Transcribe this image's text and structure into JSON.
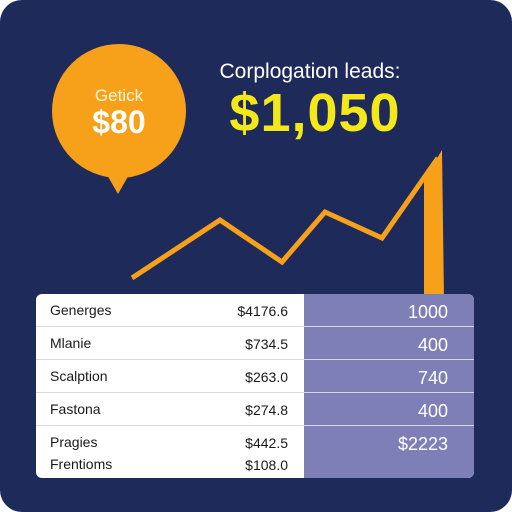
{
  "bubble": {
    "label": "Getick",
    "value": "$80"
  },
  "headline": "Corplogation leads:",
  "big_value": "$1,050",
  "table": {
    "rows": [
      {
        "name": "Generges",
        "amount": "$4176.6",
        "value": "1000"
      },
      {
        "name": "Mlanie",
        "amount": "$734.5",
        "value": "400"
      },
      {
        "name": "Scalption",
        "amount": "$263.0",
        "value": "740"
      },
      {
        "name": "Fastona",
        "amount": "$274.8",
        "value": "400"
      },
      {
        "name": "Pragies",
        "amount": "$442.5",
        "value": "$2223"
      },
      {
        "name": "Frentioms",
        "amount": "$108.0",
        "value": ""
      }
    ]
  },
  "colors": {
    "background": "#1e2a5a",
    "accent_orange": "#f7a11a",
    "accent_yellow": "#f5e81a",
    "column_purple": "#7d7fb6"
  }
}
